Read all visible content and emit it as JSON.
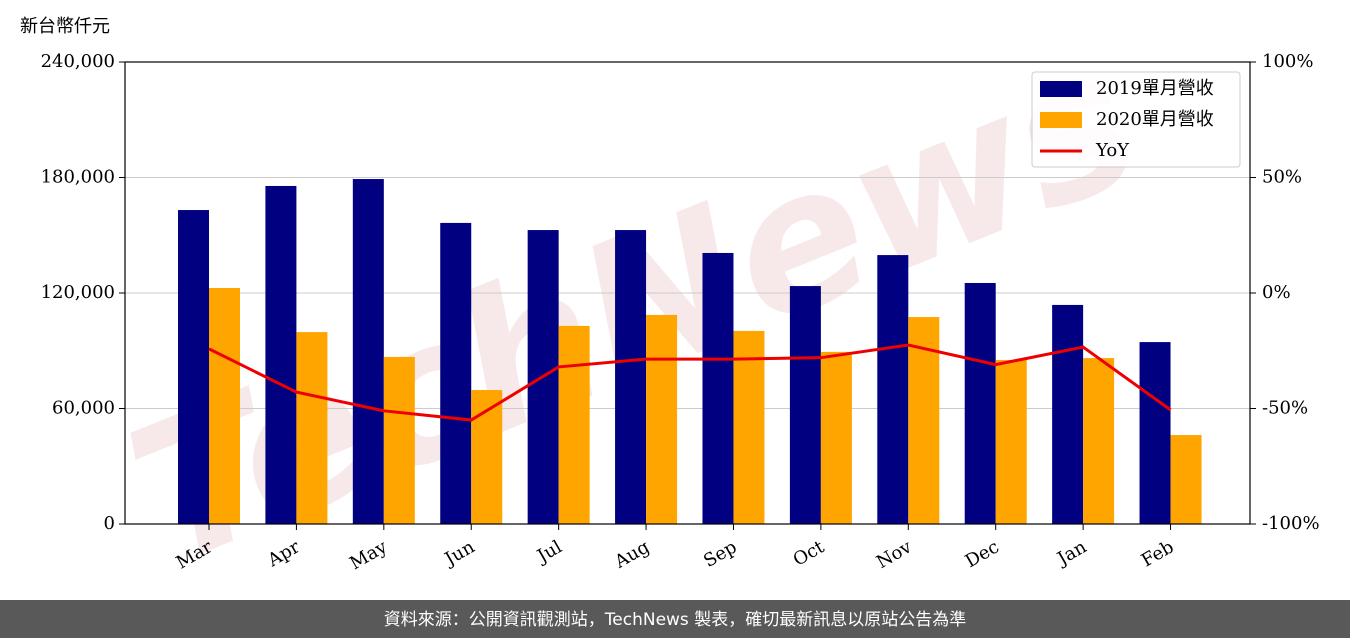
{
  "chart_data": {
    "type": "bar",
    "y_label": "新台幣仟元",
    "watermark": "TechNews",
    "footer": "資料來源：公開資訊觀測站，TechNews 製表，確切最新訊息以原站公告為準",
    "categories": [
      "Mar",
      "Apr",
      "May",
      "Jun",
      "Jul",
      "Aug",
      "Sep",
      "Oct",
      "Nov",
      "Dec",
      "Jan",
      "Feb"
    ],
    "series": [
      {
        "name": "2019單月營收",
        "color": "#000080",
        "values": [
          163100,
          175600,
          179200,
          156400,
          152700,
          152700,
          140800,
          123600,
          139700,
          125200,
          113800,
          94500
        ]
      },
      {
        "name": "2020單月營收",
        "color": "#ffa500",
        "values": [
          122600,
          99700,
          86800,
          69600,
          102900,
          108600,
          100300,
          89400,
          107500,
          85200,
          86200,
          46200
        ]
      },
      {
        "name": "YoY",
        "color": "#ee0000",
        "type": "line",
        "axis": "y2",
        "values": [
          -24.2,
          -42.9,
          -51,
          -55,
          -32,
          -28.6,
          -28.6,
          -28,
          -22.5,
          -31,
          -23.4,
          -50.6
        ]
      }
    ],
    "ylim": [
      0,
      240000
    ],
    "yticks": [
      0,
      {
        "value": 60000,
        "label": "60,000"
      },
      {
        "value": 120000,
        "label": "120,000"
      },
      {
        "value": 180000,
        "label": "180,000"
      },
      {
        "value": 240000,
        "label": "240,000"
      }
    ],
    "y2lim": [
      -100,
      100
    ],
    "y2ticks": [
      {
        "value": -100,
        "label": "-100%"
      },
      {
        "value": -50,
        "label": "-50%"
      },
      {
        "value": 0,
        "label": "0%"
      },
      {
        "value": 50,
        "label": "50%"
      },
      {
        "value": 100,
        "label": "100%"
      }
    ],
    "grid": true,
    "legend": "upper right"
  }
}
